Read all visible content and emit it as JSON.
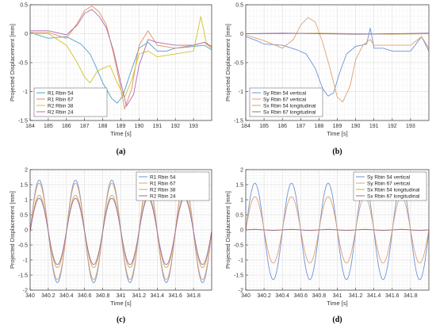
{
  "chart_data": [
    {
      "caption": "(a)",
      "type": "line",
      "xlabel": "Time [s]",
      "ylabel": "Projected Displacement [mm]",
      "xlim": [
        184,
        194
      ],
      "ylim": [
        -1.5,
        0.5
      ],
      "xticks": [
        184,
        185,
        186,
        187,
        188,
        189,
        190,
        191,
        192,
        193
      ],
      "yticks": [
        -1.5,
        -1,
        -0.5,
        0,
        0.5
      ],
      "grid": true,
      "legend_position": "bottom-left",
      "series": [
        {
          "name": "R1 Rbin 54",
          "color": "#4f9fc9",
          "x": [
            184,
            185,
            186,
            186.8,
            187.3,
            187.6,
            188,
            188.5,
            188.8,
            189.1,
            189.5,
            190,
            190.5,
            191,
            191.5,
            192,
            193,
            193.6,
            194
          ],
          "y": [
            0.02,
            -0.08,
            -0.05,
            -0.18,
            -0.35,
            -0.55,
            -0.85,
            -1.12,
            -1.2,
            -1.08,
            -0.7,
            -0.25,
            -0.15,
            -0.3,
            -0.3,
            -0.25,
            -0.22,
            -0.2,
            -0.28
          ]
        },
        {
          "name": "R1 Rbin 67",
          "color": "#e2905a",
          "x": [
            184,
            185,
            186,
            186.6,
            187,
            187.4,
            187.8,
            188.2,
            188.6,
            189,
            189.2,
            189.6,
            190,
            190.5,
            191,
            192,
            193,
            193.6,
            194
          ],
          "y": [
            0.02,
            0.02,
            -0.08,
            0.18,
            0.4,
            0.48,
            0.38,
            0.15,
            -0.35,
            -0.95,
            -1.3,
            -0.95,
            -0.2,
            0.05,
            -0.2,
            -0.25,
            -0.2,
            -0.15,
            -0.25
          ]
        },
        {
          "name": "R2 Rbin 38",
          "color": "#d4c22a",
          "x": [
            184,
            185,
            186,
            186.6,
            187,
            187.3,
            187.7,
            188,
            188.4,
            188.8,
            189.2,
            189.6,
            190,
            190.5,
            191,
            192,
            193,
            193.4,
            193.7,
            194
          ],
          "y": [
            0.0,
            0.0,
            -0.2,
            -0.5,
            -0.75,
            -0.85,
            -0.65,
            -0.6,
            -0.55,
            -0.85,
            -1.1,
            -0.8,
            -0.35,
            -0.3,
            -0.4,
            -0.35,
            -0.3,
            0.3,
            -0.15,
            -0.25
          ]
        },
        {
          "name": "R2 Rbin 24",
          "color": "#b06ab0",
          "x": [
            184,
            185,
            186,
            186.6,
            187,
            187.4,
            187.8,
            188.2,
            188.6,
            189,
            189.3,
            189.7,
            190,
            190.5,
            191,
            192,
            193,
            193.6,
            194
          ],
          "y": [
            0.05,
            0.05,
            -0.02,
            0.15,
            0.35,
            0.42,
            0.3,
            0.1,
            -0.3,
            -0.85,
            -1.25,
            -1.05,
            -0.55,
            -0.1,
            -0.15,
            -0.2,
            -0.2,
            -0.15,
            -0.22
          ]
        }
      ]
    },
    {
      "caption": "(b)",
      "type": "line",
      "xlabel": "Time [s]",
      "ylabel": "Projected Displacement [mm]",
      "xlim": [
        184,
        194
      ],
      "ylim": [
        -1.5,
        0.5
      ],
      "xticks": [
        184,
        185,
        186,
        187,
        188,
        189,
        190,
        191,
        192,
        193
      ],
      "yticks": [
        -1.5,
        -1,
        -0.5,
        0,
        0.5
      ],
      "grid": true,
      "legend_position": "bottom-left",
      "series": [
        {
          "name": "Sy Rbin 54 vertical",
          "color": "#6f93d6",
          "x": [
            184,
            184.6,
            185,
            186,
            186.8,
            187.3,
            187.8,
            188.2,
            188.5,
            188.8,
            189.1,
            189.5,
            190,
            190.6,
            190.8,
            191,
            191.5,
            192,
            193,
            193.6,
            194
          ],
          "y": [
            -0.05,
            -0.12,
            -0.18,
            -0.2,
            -0.28,
            -0.35,
            -0.6,
            -0.95,
            -1.08,
            -1.02,
            -0.7,
            -0.35,
            -0.22,
            -0.18,
            0.1,
            -0.25,
            -0.25,
            -0.3,
            -0.3,
            -0.05,
            -0.3
          ]
        },
        {
          "name": "Sy Rbin 67 vertical",
          "color": "#e0a070",
          "x": [
            184,
            185,
            186,
            186.6,
            187,
            187.4,
            187.8,
            188.2,
            188.6,
            189,
            189.3,
            189.7,
            190,
            190.4,
            190.8,
            191,
            192,
            193,
            193.6,
            194
          ],
          "y": [
            -0.02,
            -0.12,
            -0.25,
            -0.1,
            0.15,
            0.28,
            0.2,
            -0.15,
            -0.6,
            -1.1,
            -1.18,
            -0.9,
            -0.45,
            -0.2,
            -0.1,
            -0.2,
            -0.2,
            -0.2,
            -0.05,
            -0.25
          ]
        },
        {
          "name": "Sx Rbin 54 longitudinal",
          "color": "#c9b04a",
          "x": [
            184,
            186,
            188,
            190,
            192,
            194
          ],
          "y": [
            0.0,
            0.0,
            0.01,
            0.0,
            -0.01,
            0.0
          ]
        },
        {
          "name": "Sx Rbin 67 longitudinal",
          "color": "#9a6aa6",
          "x": [
            184,
            186,
            188,
            190,
            192,
            194
          ],
          "y": [
            0.0,
            0.01,
            0.0,
            -0.01,
            0.0,
            0.01
          ]
        }
      ]
    },
    {
      "caption": "(c)",
      "type": "line",
      "xlabel": "Time [s]",
      "ylabel": "Projected Displacement [mm]",
      "xlim": [
        340,
        342
      ],
      "ylim": [
        -2,
        2
      ],
      "xticks": [
        340,
        340.2,
        340.4,
        340.6,
        340.8,
        341,
        341.2,
        341.4,
        341.6,
        341.8
      ],
      "yticks": [
        -2,
        -1.5,
        -1,
        -0.5,
        0,
        0.5,
        1,
        1.5,
        2
      ],
      "grid": true,
      "legend_position": "top-right",
      "series": [
        {
          "name": "R1 Rbin 54",
          "color": "#6f93d6",
          "amplitude": 1.7,
          "period_s": 0.4,
          "peak_at_s": 340.1,
          "offset": -0.05
        },
        {
          "name": "R1 Rbin 67",
          "color": "#e0a070",
          "amplitude": 1.6,
          "period_s": 0.4,
          "peak_at_s": 340.1,
          "offset": -0.05
        },
        {
          "name": "R2 Rbin 38",
          "color": "#c9b04a",
          "amplitude": 1.2,
          "period_s": 0.4,
          "peak_at_s": 340.1,
          "offset": -0.05
        },
        {
          "name": "R2 Rbin 24",
          "color": "#9a6aa6",
          "amplitude": 1.1,
          "period_s": 0.4,
          "peak_at_s": 340.1,
          "offset": -0.05
        }
      ]
    },
    {
      "caption": "(d)",
      "type": "line",
      "xlabel": "Time [s]",
      "ylabel": "Projected Displacement [mm]",
      "xlim": [
        340,
        342
      ],
      "ylim": [
        -2,
        2
      ],
      "xticks": [
        340,
        340.2,
        340.4,
        340.6,
        340.8,
        341,
        341.2,
        341.4,
        341.6,
        341.8
      ],
      "yticks": [
        -2,
        -1.5,
        -1,
        -0.5,
        0,
        0.5,
        1,
        1.5,
        2
      ],
      "grid": true,
      "legend_position": "top-right",
      "series": [
        {
          "name": "Sy Rbin 54 vertical",
          "color": "#6f93d6",
          "amplitude": 1.6,
          "period_s": 0.4,
          "peak_at_s": 340.1,
          "offset": -0.05
        },
        {
          "name": "Sy Rbin 67 vertical",
          "color": "#e0a070",
          "amplitude": 1.1,
          "period_s": 0.4,
          "peak_at_s": 340.1,
          "offset": 0.0
        },
        {
          "name": "Sx Rbin 54 longitudinal",
          "color": "#c9b04a",
          "amplitude": 0.02,
          "period_s": 0.4,
          "peak_at_s": 340.1,
          "offset": 0.0
        },
        {
          "name": "Sx Rbin 67 longitudinal",
          "color": "#9a6aa6",
          "amplitude": 0.01,
          "period_s": 0.4,
          "peak_at_s": 340.1,
          "offset": 0.0
        }
      ]
    }
  ]
}
